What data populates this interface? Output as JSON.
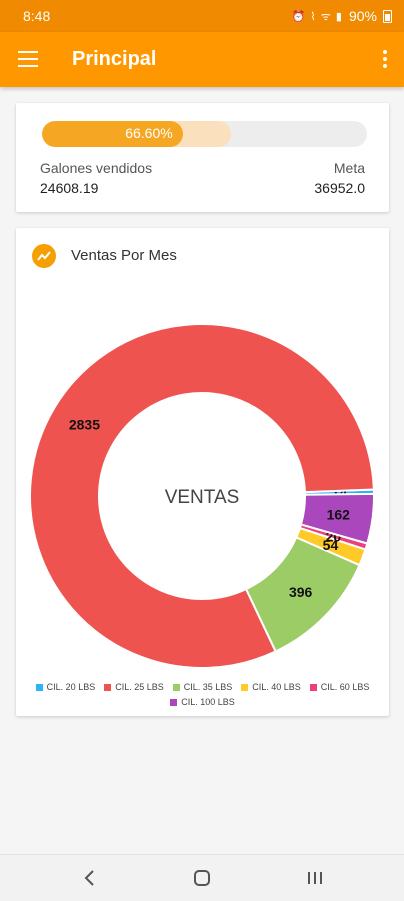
{
  "status_bar": {
    "time": "8:48",
    "battery": "90%",
    "icons": "⏰ ⌇ ᯤ ▮"
  },
  "app_bar": {
    "title": "Principal"
  },
  "progress": {
    "percent_text": "66.60%",
    "fraction": 0.666,
    "sold_label": "Galones vendidos",
    "sold_value": "24608.19",
    "goal_label": "Meta",
    "goal_value": "36952.0"
  },
  "chart_card": {
    "title": "Ventas Por Mes"
  },
  "chart_data": {
    "type": "pie",
    "center_text": "VENTAS",
    "categories": [
      "CIL. 20 LBS",
      "CIL. 25 LBS",
      "CIL. 35 LBS",
      "CIL. 40 LBS",
      "CIL. 60 LBS",
      "CIL. 100 LBS"
    ],
    "values": [
      14,
      2835,
      396,
      54,
      20,
      162
    ],
    "colors": [
      "#29b6f6",
      "#ef5350",
      "#9ccc65",
      "#ffca28",
      "#ec407a",
      "#ab47bc"
    ],
    "legend_position": "bottom"
  }
}
